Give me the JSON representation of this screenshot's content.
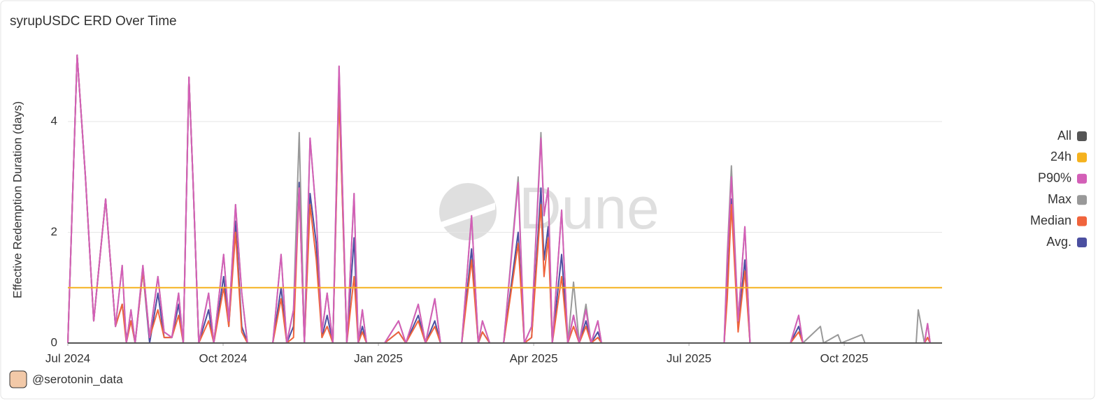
{
  "chart_data": {
    "type": "line",
    "title": "syrupUSDC ERD Over Time",
    "y_label": "Effective Redemption Duration (days)",
    "watermark": "Dune",
    "credit": "@serotonin_data",
    "x": [
      0,
      0.18,
      0.34,
      0.5,
      0.73,
      0.92,
      1.05,
      1.13,
      1.22,
      1.3,
      1.45,
      1.58,
      1.74,
      1.86,
      2.01,
      2.14,
      2.23,
      2.34,
      2.42,
      2.53,
      2.72,
      2.82,
      3.01,
      3.11,
      3.24,
      3.36,
      3.47,
      3.72,
      3.96,
      4.12,
      4.23,
      4.36,
      4.47,
      4.57,
      4.68,
      4.8,
      4.91,
      5.01,
      5.12,
      5.24,
      5.39,
      5.53,
      5.61,
      5.69,
      5.77,
      6.12,
      6.39,
      6.53,
      6.77,
      6.91,
      7.09,
      7.2,
      7.61,
      7.8,
      7.93,
      8.01,
      8.15,
      8.42,
      8.7,
      8.82,
      8.96,
      9.14,
      9.2,
      9.28,
      9.36,
      9.54,
      9.66,
      9.77,
      9.88,
      10.01,
      10.11,
      10.24,
      10.31,
      12.68,
      12.74,
      12.82,
      12.95,
      13.08,
      13.18,
      13.96,
      14.12,
      14.2,
      14.54,
      14.6,
      14.88,
      14.94,
      15.34,
      15.4,
      16.39,
      16.43,
      16.55,
      16.61,
      16.66,
      16.89
    ],
    "xlim": [
      0,
      16.89
    ],
    "xticks": [
      {
        "value": 0,
        "label": "Jul 2024"
      },
      {
        "value": 3,
        "label": "Oct 2024"
      },
      {
        "value": 6,
        "label": "Jan 2025"
      },
      {
        "value": 9,
        "label": "Apr 2025"
      },
      {
        "value": 12,
        "label": "Jul 2025"
      },
      {
        "value": 15,
        "label": "Oct 2025"
      }
    ],
    "ylim": [
      0,
      5.4
    ],
    "yticks": [
      0,
      2,
      4
    ],
    "grid": true,
    "legend": "right",
    "series": [
      {
        "name": "All",
        "color": "#555555",
        "values": [
          0,
          0,
          0,
          0,
          0,
          0,
          0,
          0,
          0,
          0,
          0,
          0,
          0,
          0,
          0,
          0,
          0,
          0,
          0,
          0,
          0,
          0,
          0,
          0,
          0,
          0,
          0,
          0,
          0,
          0,
          0,
          0,
          0,
          0,
          0,
          0,
          0,
          0,
          0,
          0,
          0,
          0,
          0,
          0,
          0,
          0,
          0,
          0,
          0,
          0,
          0,
          0,
          0,
          0,
          0,
          0,
          0,
          0,
          0,
          0,
          0,
          0,
          0,
          0,
          0,
          0,
          0,
          0,
          0,
          0,
          0,
          0,
          0,
          0,
          0,
          0,
          0,
          0,
          0,
          0,
          0,
          0,
          0,
          0,
          0,
          0,
          0,
          0,
          0,
          0,
          0,
          0,
          0,
          0
        ]
      },
      {
        "name": "24h",
        "color": "#f5b21e",
        "values": [
          1,
          1,
          1,
          1,
          1,
          1,
          1,
          1,
          1,
          1,
          1,
          1,
          1,
          1,
          1,
          1,
          1,
          1,
          1,
          1,
          1,
          1,
          1,
          1,
          1,
          1,
          1,
          1,
          1,
          1,
          1,
          1,
          1,
          1,
          1,
          1,
          1,
          1,
          1,
          1,
          1,
          1,
          1,
          1,
          1,
          1,
          1,
          1,
          1,
          1,
          1,
          1,
          1,
          1,
          1,
          1,
          1,
          1,
          1,
          1,
          1,
          1,
          1,
          1,
          1,
          1,
          1,
          1,
          1,
          1,
          1,
          1,
          1,
          1,
          1,
          1,
          1,
          1,
          1,
          1,
          1,
          1,
          1,
          1,
          1,
          1,
          1,
          1,
          1,
          1,
          1,
          1,
          1,
          1
        ]
      },
      {
        "name": "P90%",
        "color": "#d35fb7",
        "values": [
          0,
          5.2,
          3.0,
          0.4,
          2.6,
          0.3,
          1.4,
          0,
          0.6,
          0,
          1.4,
          0.1,
          1.2,
          0.2,
          0.1,
          0.9,
          0,
          4.8,
          2.9,
          0,
          0.9,
          0,
          1.6,
          0.4,
          2.5,
          0.9,
          0,
          0,
          0,
          1.6,
          0,
          0.6,
          2.8,
          0,
          3.7,
          2.3,
          0.2,
          0.9,
          0,
          5.0,
          0,
          2.7,
          0,
          0.6,
          0,
          0,
          0.4,
          0,
          0.7,
          0,
          0.8,
          0,
          0,
          2.3,
          0,
          0.4,
          0,
          0,
          2.9,
          0,
          0.3,
          3.7,
          2.3,
          2.8,
          0,
          2.4,
          0,
          0.5,
          0,
          0.6,
          0,
          0.4,
          0,
          0,
          1.5,
          3.0,
          0.4,
          2.1,
          0,
          0,
          0.5,
          0,
          0,
          0,
          0,
          0,
          0,
          0,
          0,
          0,
          0,
          0.35,
          0,
          0
        ]
      },
      {
        "name": "Max",
        "color": "#999999",
        "values": [
          0,
          5.2,
          3.0,
          0.4,
          2.6,
          0.3,
          1.4,
          0,
          0.6,
          0,
          1.4,
          0.1,
          1.2,
          0.2,
          0.1,
          0.9,
          0,
          4.8,
          2.9,
          0,
          0.9,
          0,
          1.6,
          0.4,
          2.5,
          0.9,
          0,
          0,
          0,
          1.6,
          0,
          0.6,
          3.8,
          0,
          3.7,
          2.3,
          0.2,
          0.9,
          0,
          5.0,
          0,
          2.7,
          0,
          0.6,
          0,
          0,
          0.4,
          0,
          0.7,
          0,
          0.8,
          0,
          0,
          2.3,
          0,
          0.4,
          0,
          0,
          3.0,
          0,
          0.3,
          3.8,
          2.3,
          2.8,
          0,
          2.4,
          0,
          1.1,
          0,
          0.7,
          0,
          0.4,
          0,
          0,
          1.6,
          3.2,
          0.4,
          2.1,
          0,
          0,
          0.5,
          0,
          0.3,
          0,
          0.15,
          0,
          0.15,
          0,
          0,
          0.6,
          0,
          0.35,
          0,
          0
        ]
      },
      {
        "name": "Median",
        "color": "#f0643c",
        "values": [
          0,
          5.2,
          3.0,
          0.4,
          2.6,
          0.3,
          0.7,
          0,
          0.4,
          0,
          1.3,
          0.1,
          0.6,
          0.1,
          0.1,
          0.5,
          0,
          4.8,
          2.9,
          0,
          0.4,
          0,
          1.0,
          0.3,
          2.0,
          0.2,
          0,
          0,
          0,
          0.8,
          0,
          0.1,
          2.8,
          0,
          2.5,
          1.5,
          0.1,
          0.3,
          0,
          4.5,
          0,
          1.2,
          0,
          0.2,
          0,
          0,
          0.2,
          0,
          0.4,
          0,
          0.3,
          0,
          0,
          1.5,
          0,
          0.2,
          0,
          0,
          1.8,
          0,
          0.1,
          2.5,
          1.2,
          1.9,
          0,
          1.2,
          0,
          0.3,
          0,
          0.3,
          0,
          0.1,
          0,
          0,
          0.8,
          2.5,
          0.2,
          1.3,
          0,
          0,
          0.2,
          0,
          0,
          0,
          0,
          0,
          0,
          0,
          0,
          0,
          0,
          0.1,
          0,
          0
        ]
      },
      {
        "name": "Avg.",
        "color": "#4b4fa0",
        "values": [
          0,
          5.2,
          3.0,
          0.4,
          2.6,
          0.3,
          0.7,
          0.1,
          0.4,
          0,
          1.3,
          0,
          0.9,
          0.1,
          0.1,
          0.7,
          0,
          4.8,
          2.9,
          0,
          0.6,
          0,
          1.2,
          0.3,
          2.2,
          0.3,
          0,
          0,
          0,
          1.0,
          0,
          0.3,
          2.9,
          0,
          2.7,
          1.8,
          0.1,
          0.5,
          0,
          4.6,
          0,
          1.9,
          0,
          0.3,
          0,
          0,
          0.2,
          0,
          0.5,
          0,
          0.4,
          0,
          0,
          1.7,
          0,
          0.2,
          0,
          0,
          2.0,
          0,
          0.1,
          2.8,
          1.5,
          2.1,
          0,
          1.6,
          0,
          0.5,
          0,
          0.4,
          0,
          0.2,
          0,
          0,
          1.0,
          2.6,
          0.3,
          1.5,
          0,
          0,
          0.3,
          0,
          0,
          0,
          0,
          0,
          0,
          0,
          0,
          0,
          0,
          0.1,
          0,
          0
        ]
      }
    ]
  }
}
